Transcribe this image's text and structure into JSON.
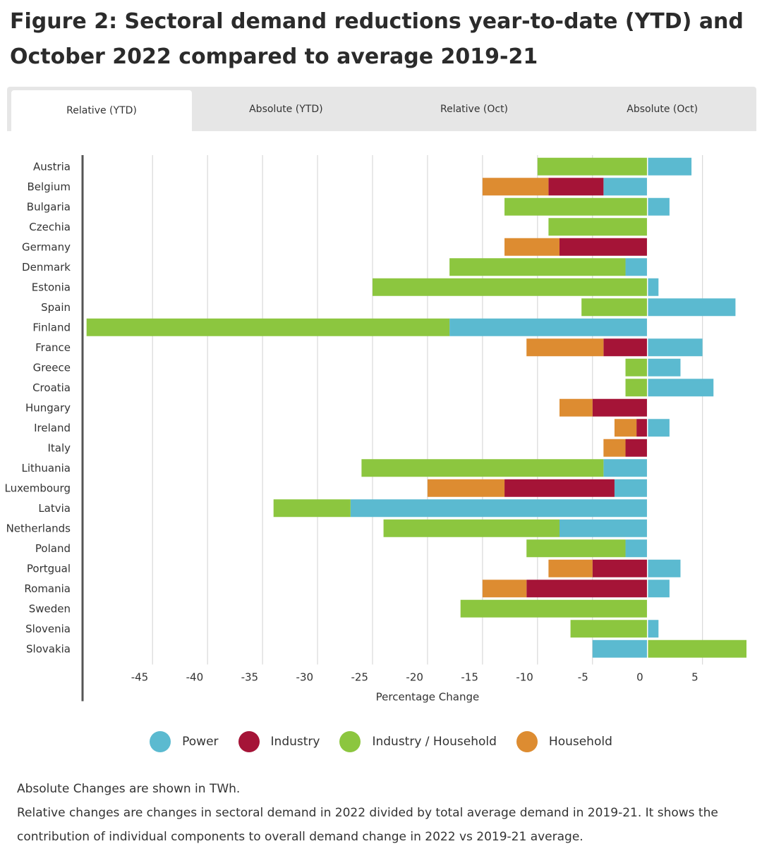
{
  "title": "Figure 2: Sectoral demand reductions year-to-date (YTD) and October 2022 compared to average 2019-21",
  "tabs": [
    {
      "label": "Relative (YTD)",
      "active": true
    },
    {
      "label": "Absolute (YTD)",
      "active": false
    },
    {
      "label": "Relative (Oct)",
      "active": false
    },
    {
      "label": "Absolute (Oct)",
      "active": false
    }
  ],
  "colors": {
    "power": "#5bbad0",
    "industry": "#a51437",
    "industry_household": "#8cc63f",
    "household": "#dd8c31",
    "grid": "#d9d9d9",
    "axis": "#555555"
  },
  "legend": [
    {
      "key": "power",
      "label": "Power"
    },
    {
      "key": "industry",
      "label": "Industry"
    },
    {
      "key": "industry_household",
      "label": "Industry / Household"
    },
    {
      "key": "household",
      "label": "Household"
    }
  ],
  "notes": [
    "Absolute Changes are shown in TWh.",
    "Relative changes are changes in sectoral demand in 2022 divided by total average demand in 2019-21. It shows the contribution of individual components to overall demand change in 2022 vs 2019-21 average."
  ],
  "chart_data": {
    "type": "bar",
    "orientation": "horizontal",
    "stacked": true,
    "xlabel": "Percentage Change",
    "xlim": [
      -51.3,
      9
    ],
    "xticks": [
      -45,
      -40,
      -35,
      -30,
      -25,
      -20,
      -15,
      -10,
      -5,
      0,
      5
    ],
    "grid": true,
    "categories": [
      "Austria",
      "Belgium",
      "Bulgaria",
      "Czechia",
      "Germany",
      "Denmark",
      "Estonia",
      "Spain",
      "Finland",
      "France",
      "Greece",
      "Croatia",
      "Hungary",
      "Ireland",
      "Italy",
      "Lithuania",
      "Luxembourg",
      "Latvia",
      "Netherlands",
      "Poland",
      "Portgual",
      "Romania",
      "Sweden",
      "Slovenia",
      "Slovakia"
    ],
    "series": [
      {
        "name": "Power",
        "key": "power",
        "values": [
          4,
          -4,
          2,
          0,
          0,
          -2,
          1,
          8,
          -18,
          5,
          3,
          6,
          0,
          2,
          0,
          -4,
          -3,
          -27,
          -8,
          -2,
          3,
          2,
          0,
          1,
          -5
        ]
      },
      {
        "name": "Industry",
        "key": "industry",
        "values": [
          0,
          -5,
          0,
          0,
          -8,
          0,
          0,
          0,
          0,
          -4,
          0,
          0,
          -5,
          -1,
          -2,
          0,
          -10,
          0,
          0,
          0,
          -5,
          -11,
          0,
          0,
          0
        ]
      },
      {
        "name": "Industry / Household",
        "key": "industry_household",
        "values": [
          -10,
          0,
          -13,
          -9,
          0,
          -16,
          -25,
          -6,
          -33,
          0,
          -2,
          -2,
          0,
          0,
          0,
          -22,
          0,
          -7,
          -16,
          -9,
          0,
          0,
          -17,
          -7,
          9
        ]
      },
      {
        "name": "Household",
        "key": "household",
        "values": [
          0,
          -6,
          0,
          0,
          -5,
          0,
          0,
          0,
          0,
          -7,
          0,
          0,
          -3,
          -2,
          -2,
          0,
          -7,
          0,
          0,
          0,
          -4,
          -4,
          0,
          0,
          0
        ]
      }
    ]
  }
}
